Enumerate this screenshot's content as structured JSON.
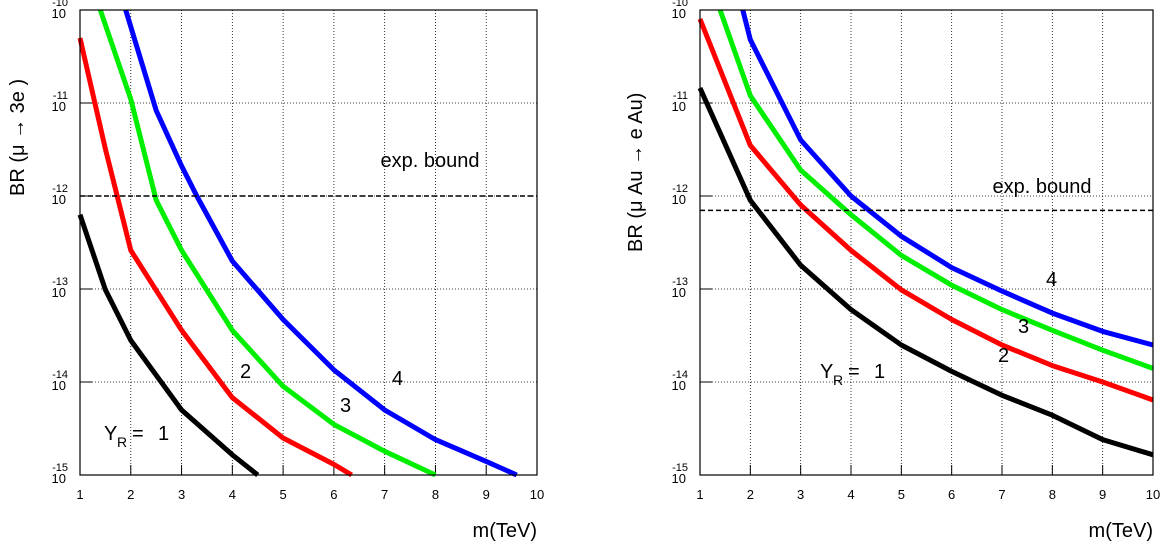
{
  "chart_data": [
    {
      "type": "line",
      "log_y": true,
      "grid": true,
      "xlabel": "m(TeV)",
      "ylabel": "BR (μ → 3e )",
      "xlim": [
        1,
        10
      ],
      "xticks": [
        1,
        2,
        3,
        4,
        5,
        6,
        7,
        8,
        9,
        10
      ],
      "ylim": [
        1e-15,
        1e-10
      ],
      "yticks": [
        {
          "value": 1e-15,
          "label": "10",
          "exponent": "-15"
        },
        {
          "value": 1e-14,
          "label": "10",
          "exponent": "-14"
        },
        {
          "value": 1e-13,
          "label": "10",
          "exponent": "-13"
        },
        {
          "value": 1e-12,
          "label": "10",
          "exponent": "-12"
        },
        {
          "value": 1e-11,
          "label": "10",
          "exponent": "-11"
        },
        {
          "value": 1e-10,
          "label": "10",
          "exponent": "-10"
        }
      ],
      "bound": {
        "label": "exp. bound",
        "value": 1e-12
      },
      "label_prefix": "Y",
      "label_subscript": "R",
      "label_equals": "=",
      "series": [
        {
          "name": "1",
          "color": "#000000",
          "x": [
            1,
            1.5,
            2,
            3,
            4,
            4.5
          ],
          "values": [
            6.3e-13,
            9.8e-14,
            2.8e-14,
            5e-15,
            1.65e-15,
            1e-15
          ]
        },
        {
          "name": "2",
          "color": "#ff0000",
          "x": [
            1,
            1.5,
            2,
            3,
            4,
            5,
            6,
            6.35
          ],
          "values": [
            5e-11,
            3.2e-12,
            2.6e-13,
            3.6e-14,
            6.8e-15,
            2.5e-15,
            1.3e-15,
            1e-15
          ]
        },
        {
          "name": "3",
          "color": "#00ee00",
          "x": [
            1.4,
            2,
            2.5,
            3,
            4,
            5,
            6,
            7,
            8
          ],
          "values": [
            1e-10,
            1.1e-11,
            9e-13,
            2.6e-13,
            3.6e-14,
            9e-15,
            3.5e-15,
            1.8e-15,
            1e-15
          ]
        },
        {
          "name": "4",
          "color": "#0000ff",
          "x": [
            1.9,
            2.5,
            3,
            3.3,
            4,
            5,
            6,
            7,
            8,
            9,
            9.6
          ],
          "values": [
            1e-10,
            8.3e-12,
            2.1e-12,
            1e-12,
            2e-13,
            4.7e-14,
            1.35e-14,
            5e-15,
            2.4e-15,
            1.4e-15,
            1e-15
          ]
        }
      ]
    },
    {
      "type": "line",
      "log_y": true,
      "grid": true,
      "xlabel": "m(TeV)",
      "ylabel": "BR (μ Au → e Au)",
      "xlim": [
        1,
        10
      ],
      "xticks": [
        1,
        2,
        3,
        4,
        5,
        6,
        7,
        8,
        9,
        10
      ],
      "ylim": [
        1e-15,
        1e-10
      ],
      "yticks": [
        {
          "value": 1e-15,
          "label": "10",
          "exponent": "-15"
        },
        {
          "value": 1e-14,
          "label": "10",
          "exponent": "-14"
        },
        {
          "value": 1e-13,
          "label": "10",
          "exponent": "-13"
        },
        {
          "value": 1e-12,
          "label": "10",
          "exponent": "-12"
        },
        {
          "value": 1e-11,
          "label": "10",
          "exponent": "-11"
        },
        {
          "value": 1e-10,
          "label": "10",
          "exponent": "-10"
        }
      ],
      "bound": {
        "label": "exp. bound",
        "value": 7e-13
      },
      "label_prefix": "Y",
      "label_subscript": "R",
      "label_equals": "=",
      "series": [
        {
          "name": "1",
          "color": "#000000",
          "x": [
            1,
            2,
            3,
            4,
            5,
            6,
            7,
            8,
            9,
            10
          ],
          "values": [
            1.45e-11,
            9e-13,
            1.8e-13,
            6e-14,
            2.5e-14,
            1.3e-14,
            7.2e-15,
            4.4e-15,
            2.4e-15,
            1.65e-15
          ]
        },
        {
          "name": "2",
          "color": "#ff0000",
          "x": [
            1,
            2,
            3,
            4,
            5,
            6,
            7,
            8,
            9,
            10
          ],
          "values": [
            8e-11,
            3.5e-12,
            8e-13,
            2.6e-13,
            9.8e-14,
            4.7e-14,
            2.5e-14,
            1.5e-14,
            1e-14,
            6.4e-15
          ]
        },
        {
          "name": "3",
          "color": "#00ee00",
          "x": [
            1.4,
            2,
            3,
            4,
            5,
            6,
            7,
            8,
            9,
            10
          ],
          "values": [
            1e-10,
            1.2e-11,
            1.9e-12,
            6.3e-13,
            2.3e-13,
            1.1e-13,
            6e-14,
            3.6e-14,
            2.2e-14,
            1.4e-14
          ]
        },
        {
          "name": "4",
          "color": "#0000ff",
          "x": [
            1.85,
            2,
            3,
            4,
            5,
            6,
            7,
            8,
            9,
            10
          ],
          "values": [
            1e-10,
            4.8e-11,
            4e-12,
            1e-12,
            3.7e-13,
            1.7e-13,
            9.5e-14,
            5.5e-14,
            3.5e-14,
            2.5e-14
          ]
        }
      ]
    }
  ]
}
